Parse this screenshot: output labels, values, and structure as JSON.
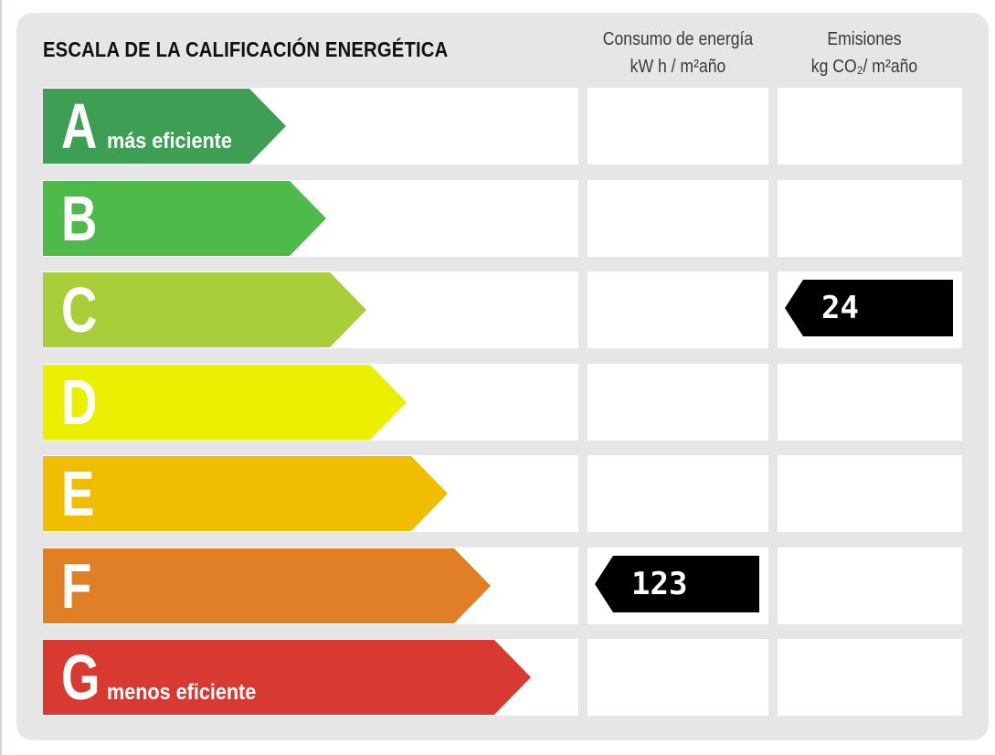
{
  "chart_data": {
    "type": "table",
    "title": "ESCALA DE LA CALIFICACIÓN ENERGÉTICA",
    "columns": [
      {
        "lines": [
          "Consumo de energía",
          "kW h / m²año"
        ]
      },
      {
        "lines": [
          "Emisiones",
          "kg CO₂/ m²año"
        ]
      }
    ],
    "classes": [
      {
        "letter": "A",
        "label": "más eficiente",
        "color": "#3d9e54",
        "bar_fraction": 0.45
      },
      {
        "letter": "B",
        "label": "",
        "color": "#4fba4c",
        "bar_fraction": 0.525
      },
      {
        "letter": "C",
        "label": "",
        "color": "#a8cf3a",
        "bar_fraction": 0.6
      },
      {
        "letter": "D",
        "label": "",
        "color": "#ecef00",
        "bar_fraction": 0.675
      },
      {
        "letter": "E",
        "label": "",
        "color": "#f0bd00",
        "bar_fraction": 0.75
      },
      {
        "letter": "F",
        "label": "",
        "color": "#e07f26",
        "bar_fraction": 0.83
      },
      {
        "letter": "G",
        "label": "menos eficiente",
        "color": "#d83a31",
        "bar_fraction": 0.905
      }
    ],
    "ratings": [
      {
        "column": 0,
        "class": "F",
        "value": "123"
      },
      {
        "column": 1,
        "class": "C",
        "value": "24"
      }
    ]
  }
}
